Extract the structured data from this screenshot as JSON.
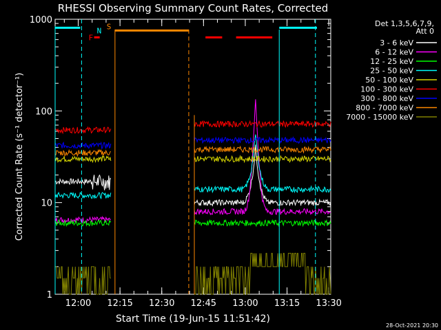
{
  "chart_data": {
    "type": "line",
    "title": "RHESSI Observing Summary Count Rates, Corrected",
    "xlabel": "Start Time (19-Jun-15 11:51:42)",
    "ylabel": "Corrected Count Rate (s⁻¹ detector⁻¹)",
    "ylim": [
      1,
      1000
    ],
    "yscale": "log",
    "xlim_minutes": [
      0,
      99
    ],
    "x_tick_labels": [
      "12:00",
      "12:15",
      "12:30",
      "12:45",
      "13:00",
      "13:15",
      "13:30"
    ],
    "y_tick_labels": [
      "1",
      "10",
      "100",
      "1000"
    ],
    "legend_header": [
      "Det 1,3,5,6,7,9,",
      "Att 0"
    ],
    "legend": [
      {
        "label": "3 - 6 keV",
        "color": "#ffffff"
      },
      {
        "label": "6 - 12 keV",
        "color": "#ff00ff"
      },
      {
        "label": "12 - 25 keV",
        "color": "#00ff00"
      },
      {
        "label": "25 - 50 keV",
        "color": "#00ffff"
      },
      {
        "label": "50 - 100 keV",
        "color": "#d8d800"
      },
      {
        "label": "100 - 300 keV",
        "color": "#ff0000"
      },
      {
        "label": "300 - 800 keV",
        "color": "#0000ff"
      },
      {
        "label": "800 - 7000 keV",
        "color": "#ff8800"
      },
      {
        "label": "7000 - 15000 keV",
        "color": "#808000"
      }
    ],
    "flags": [
      {
        "letter": "F",
        "color": "#ff0000"
      },
      {
        "letter": "N",
        "color": "#00ffff"
      },
      {
        "letter": "S",
        "color": "#ff8800"
      }
    ],
    "series_segments": [
      {
        "t0": 0,
        "t1": 20,
        "levels": [
          17,
          6.5,
          6,
          12,
          30,
          62,
          42,
          35,
          1.6
        ]
      },
      {
        "t0": 50,
        "t1": 99,
        "levels": [
          10,
          8,
          6,
          14,
          30,
          72,
          48,
          38,
          2.5
        ]
      }
    ],
    "flare_peak": {
      "time_min": 72,
      "value": 130
    },
    "date_stamp": "28-Oct-2021 20:30"
  }
}
